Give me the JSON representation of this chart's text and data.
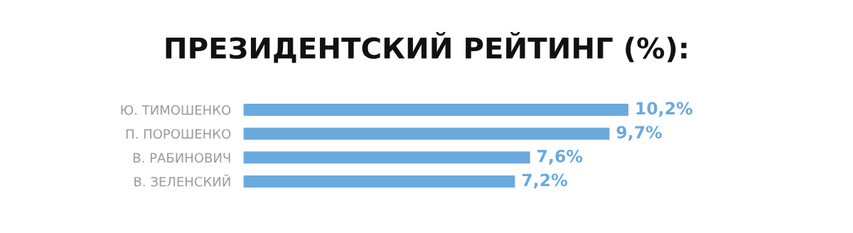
{
  "chart_data": {
    "type": "bar",
    "orientation": "horizontal",
    "title": "ПРЕЗИДЕНТСКИЙ РЕЙТИНГ (%):",
    "categories": [
      "Ю. ТИМОШЕНКО",
      "П. ПОРОШЕНКО",
      "В. РАБИНОВИЧ",
      "В. ЗЕЛЕНСКИЙ"
    ],
    "values": [
      10.2,
      9.7,
      7.6,
      7.2
    ],
    "value_labels": [
      "10,2%",
      "9,7%",
      "7,6%",
      "7,2%"
    ],
    "color": "#6aaade",
    "grid": false,
    "legend": false
  }
}
